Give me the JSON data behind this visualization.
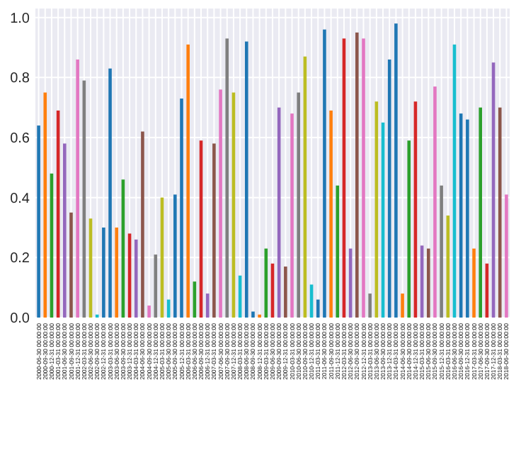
{
  "chart_data": {
    "type": "bar",
    "categories": [
      "2000-06-30 00:00:00",
      "2000-09-30 00:00:00",
      "2000-12-31 00:00:00",
      "2001-03-31 00:00:00",
      "2001-06-30 00:00:00",
      "2001-09-30 00:00:00",
      "2001-12-31 00:00:00",
      "2002-03-31 00:00:00",
      "2002-06-30 00:00:00",
      "2002-09-30 00:00:00",
      "2002-12-31 00:00:00",
      "2003-03-31 00:00:00",
      "2003-06-30 00:00:00",
      "2003-09-30 00:00:00",
      "2003-12-31 00:00:00",
      "2004-03-31 00:00:00",
      "2004-06-30 00:00:00",
      "2004-09-30 00:00:00",
      "2004-12-31 00:00:00",
      "2005-03-31 00:00:00",
      "2005-06-30 00:00:00",
      "2005-09-30 00:00:00",
      "2005-12-31 00:00:00",
      "2006-03-31 00:00:00",
      "2006-06-30 00:00:00",
      "2006-09-30 00:00:00",
      "2006-12-31 00:00:00",
      "2007-03-31 00:00:00",
      "2007-06-30 00:00:00",
      "2007-09-30 00:00:00",
      "2007-12-31 00:00:00",
      "2008-03-31 00:00:00",
      "2008-06-30 00:00:00",
      "2008-09-30 00:00:00",
      "2008-12-31 00:00:00",
      "2009-03-31 00:00:00",
      "2009-06-30 00:00:00",
      "2009-09-30 00:00:00",
      "2009-12-31 00:00:00",
      "2010-03-31 00:00:00",
      "2010-06-30 00:00:00",
      "2010-09-30 00:00:00",
      "2010-12-31 00:00:00",
      "2011-03-31 00:00:00",
      "2011-06-30 00:00:00",
      "2011-09-30 00:00:00",
      "2011-12-31 00:00:00",
      "2012-03-31 00:00:00",
      "2012-06-30 00:00:00",
      "2012-09-30 00:00:00",
      "2012-12-31 00:00:00",
      "2013-03-31 00:00:00",
      "2013-06-30 00:00:00",
      "2013-09-30 00:00:00",
      "2013-12-31 00:00:00",
      "2014-03-31 00:00:00",
      "2014-06-30 00:00:00",
      "2014-09-30 00:00:00",
      "2014-12-31 00:00:00",
      "2015-03-31 00:00:00",
      "2015-06-30 00:00:00",
      "2015-09-30 00:00:00",
      "2015-12-31 00:00:00",
      "2016-03-31 00:00:00",
      "2016-06-30 00:00:00",
      "2016-09-30 00:00:00",
      "2016-12-31 00:00:00",
      "2017-03-31 00:00:00",
      "2017-06-30 00:00:00",
      "2017-09-30 00:00:00",
      "2017-12-31 00:00:00",
      "2018-03-31 00:00:00",
      "2018-06-30 00:00:00"
    ],
    "values": [
      0.64,
      0.75,
      0.48,
      0.69,
      0.58,
      0.35,
      0.86,
      0.79,
      0.33,
      0.01,
      0.3,
      0.83,
      0.3,
      0.46,
      0.28,
      0.26,
      0.62,
      0.04,
      0.21,
      0.4,
      0.06,
      0.41,
      0.73,
      0.91,
      0.12,
      0.59,
      0.08,
      0.58,
      0.76,
      0.93,
      0.75,
      0.14,
      0.92,
      0.02,
      0.01,
      0.23,
      0.18,
      0.7,
      0.17,
      0.68,
      0.75,
      0.87,
      0.11,
      0.06,
      0.96,
      0.69,
      0.44,
      0.93,
      0.23,
      0.95,
      0.93,
      0.08,
      0.72,
      0.65,
      0.86,
      0.98,
      0.08,
      0.59,
      0.72,
      0.24,
      0.23,
      0.77,
      0.44,
      0.34,
      0.91,
      0.68,
      0.66,
      0.23,
      0.7,
      0.18,
      0.85,
      0.7,
      0.41
    ],
    "colors": [
      "#1f77b4",
      "#ff7f0e",
      "#2ca02c",
      "#d62728",
      "#9467bd",
      "#8c564b",
      "#e377c2",
      "#7f7f7f",
      "#bcbd22",
      "#17becf",
      "#1f77b4",
      "#1f77b4",
      "#ff7f0e",
      "#2ca02c",
      "#d62728",
      "#9467bd",
      "#8c564b",
      "#e377c2",
      "#7f7f7f",
      "#bcbd22",
      "#17becf",
      "#1f77b4",
      "#1f77b4",
      "#ff7f0e",
      "#2ca02c",
      "#d62728",
      "#9467bd",
      "#8c564b",
      "#e377c2",
      "#7f7f7f",
      "#bcbd22",
      "#17becf",
      "#1f77b4",
      "#1f77b4",
      "#ff7f0e",
      "#2ca02c",
      "#d62728",
      "#9467bd",
      "#8c564b",
      "#e377c2",
      "#7f7f7f",
      "#bcbd22",
      "#17becf",
      "#1f77b4",
      "#1f77b4",
      "#ff7f0e",
      "#2ca02c",
      "#d62728",
      "#9467bd",
      "#8c564b",
      "#e377c2",
      "#7f7f7f",
      "#bcbd22",
      "#17becf",
      "#1f77b4",
      "#1f77b4",
      "#ff7f0e",
      "#2ca02c",
      "#d62728",
      "#9467bd",
      "#8c564b",
      "#e377c2",
      "#7f7f7f",
      "#bcbd22",
      "#17becf",
      "#1f77b4",
      "#1f77b4",
      "#ff7f0e",
      "#2ca02c",
      "#d62728",
      "#9467bd",
      "#8c564b",
      "#e377c2"
    ],
    "ylim": [
      0,
      1.03
    ],
    "yticks": [
      {
        "value": 0,
        "label": "0.0"
      },
      {
        "value": 0.2,
        "label": "0.2"
      },
      {
        "value": 0.4,
        "label": "0.4"
      },
      {
        "value": 0.6,
        "label": "0.6"
      },
      {
        "value": 0.8,
        "label": "0.8"
      },
      {
        "value": 1,
        "label": "1.0"
      }
    ],
    "grid": true
  }
}
